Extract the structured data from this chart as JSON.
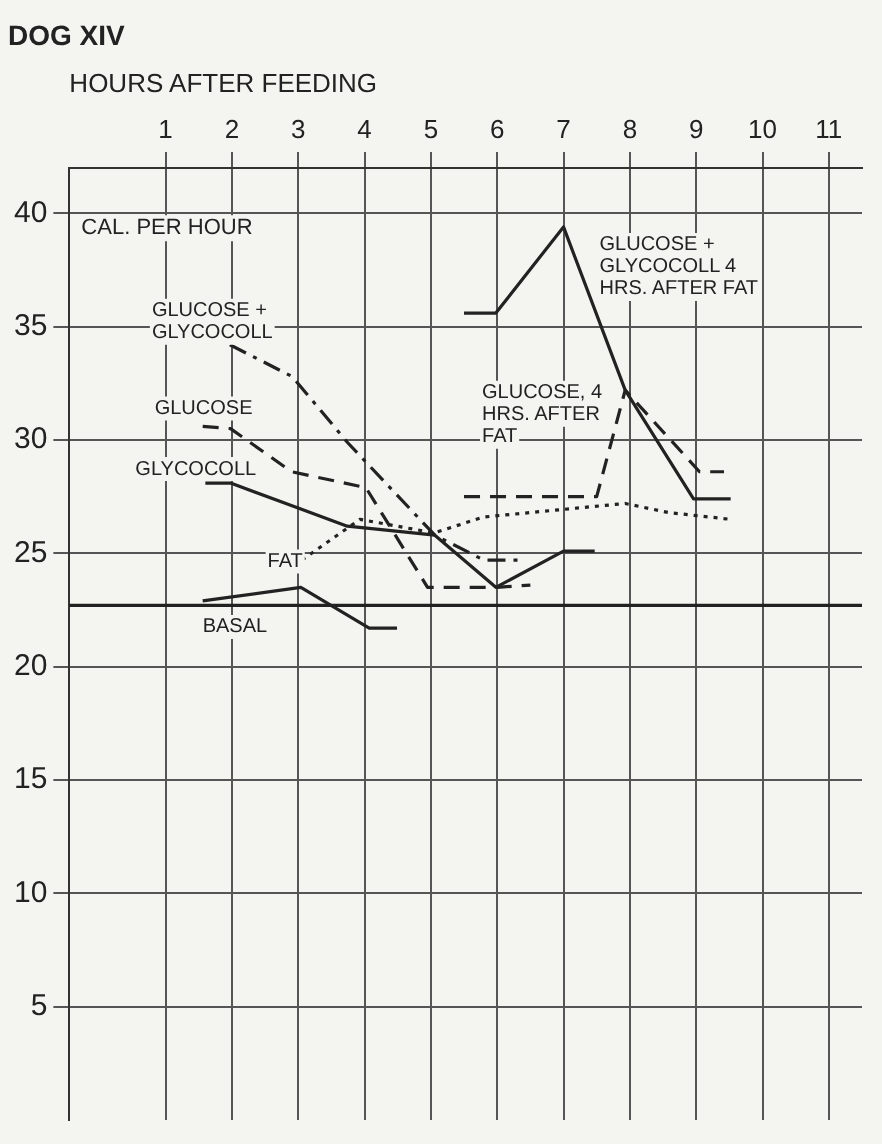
{
  "chart_data": {
    "type": "line",
    "title": "DOG XIV",
    "xlabel": "HOURS AFTER FEEDING",
    "ylabel": "CAL. PER HOUR",
    "xlim": [
      -0.45,
      11.5
    ],
    "xticks": [
      1,
      2,
      3,
      4,
      5,
      6,
      7,
      8,
      9,
      10,
      11
    ],
    "ylim": [
      0,
      42
    ],
    "yticks": [
      5,
      10,
      15,
      20,
      25,
      30,
      35,
      40
    ],
    "grid": true,
    "legend": false,
    "marker": "none",
    "ref_lines": [
      {
        "axis": "y",
        "value": 22.7,
        "color": "#222222"
      }
    ],
    "series": [
      {
        "name": "GLUCOSE + GLYCOCOLL",
        "color": "#222222",
        "line_style": "dashdot",
        "x": [
          1.97,
          2.91,
          3.74,
          5.06,
          5.8,
          6.4
        ],
        "values": [
          34.2,
          32.8,
          29.9,
          25.8,
          24.7,
          24.7
        ]
      },
      {
        "name": "GLUCOSE",
        "color": "#222222",
        "line_style": "dashed",
        "x": [
          1.56,
          1.98,
          2.9,
          4.02,
          4.95,
          6.0,
          6.5
        ],
        "values": [
          30.6,
          30.5,
          28.6,
          27.9,
          23.5,
          23.5,
          23.6
        ]
      },
      {
        "name": "GLYCOCOLL",
        "color": "#222222",
        "line_style": "solid",
        "x": [
          1.6,
          1.98,
          3.74,
          5.06,
          5.98,
          7.0,
          7.47
        ],
        "values": [
          28.1,
          28.1,
          26.2,
          25.8,
          23.5,
          25.1,
          25.1
        ]
      },
      {
        "name": "FAT",
        "color": "#222222",
        "line_style": "dotted",
        "x": [
          2.81,
          3.93,
          5.05,
          5.79,
          7.93,
          8.58,
          9.52
        ],
        "values": [
          24.2,
          26.5,
          25.9,
          26.6,
          27.2,
          26.8,
          26.5
        ]
      },
      {
        "name": "BASAL",
        "color": "#222222",
        "line_style": "solid",
        "x": [
          1.56,
          3.04,
          4.07,
          4.49
        ],
        "values": [
          22.9,
          23.5,
          21.7,
          21.7
        ]
      },
      {
        "name": "GLUCOSE, 4 HRS. AFTER FAT",
        "color": "#222222",
        "line_style": "dashed",
        "x": [
          5.5,
          7.5,
          7.93,
          9.05,
          9.42
        ],
        "values": [
          27.5,
          27.5,
          32.2,
          28.6,
          28.6
        ]
      },
      {
        "name": "GLUCOSE + GLYCOCOLL 4 HRS. AFTER FAT",
        "color": "#222222",
        "line_style": "solid",
        "x": [
          5.5,
          5.98,
          7.0,
          7.93,
          8.96,
          9.52
        ],
        "values": [
          35.6,
          35.6,
          39.4,
          32.2,
          27.4,
          27.4
        ]
      }
    ]
  }
}
